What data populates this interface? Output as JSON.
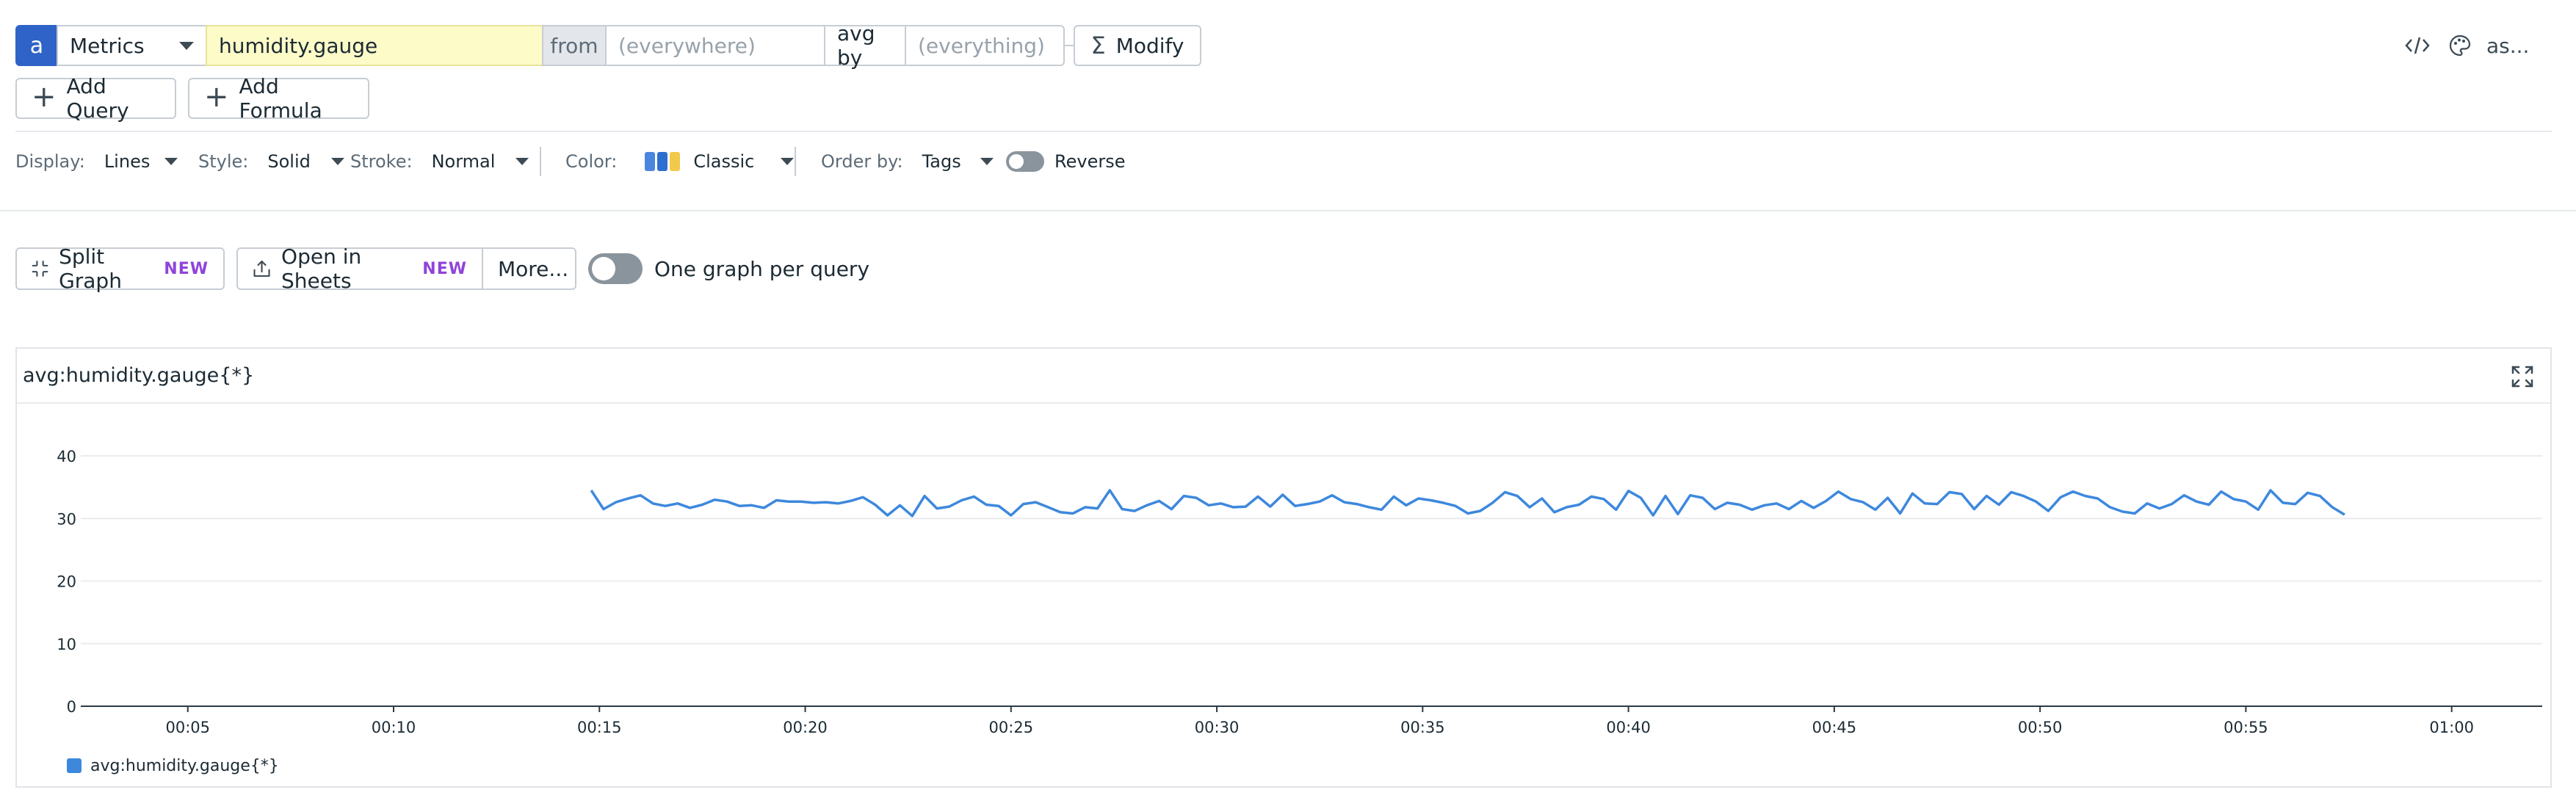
{
  "query": {
    "letter": "a",
    "source": "Metrics",
    "metric": "humidity.gauge",
    "from_label": "from",
    "from_placeholder": "(everywhere)",
    "aggregation": "avg by",
    "group_placeholder": "(everything)",
    "modify_label": "Modify",
    "modify_icon": "sigma-icon"
  },
  "top_actions": {
    "code_icon": "code-icon",
    "palette_icon": "palette-icon",
    "alias_label": "as..."
  },
  "query_buttons": {
    "add_query": "Add Query",
    "add_formula": "Add Formula"
  },
  "display_options": {
    "display_label": "Display:",
    "display_value": "Lines",
    "style_label": "Style:",
    "style_value": "Solid",
    "stroke_label": "Stroke:",
    "stroke_value": "Normal",
    "color_label": "Color:",
    "color_value": "Classic",
    "palette_colors": [
      "#4a86dd",
      "#2c6fd1",
      "#f2c94c"
    ],
    "order_label": "Order by:",
    "order_value": "Tags",
    "reverse_label": "Reverse"
  },
  "graph_actions": {
    "split_graph": "Split Graph",
    "split_new": "NEW",
    "open_sheets": "Open in Sheets",
    "sheets_new": "NEW",
    "more": "More...",
    "one_graph_label": "One graph per query"
  },
  "colors": {
    "accent": "#2f63c7",
    "line": "#3d88dd",
    "new_badge": "#8f44d9",
    "metric_bg": "#fdfbc8"
  },
  "chart_data": {
    "type": "line",
    "title": "avg:humidity.gauge{*}",
    "xlabel": "",
    "ylabel": "",
    "x_ticks": [
      "00:05",
      "00:10",
      "00:15",
      "00:20",
      "00:25",
      "00:30",
      "00:35",
      "00:40",
      "00:45",
      "00:50",
      "00:55",
      "01:00"
    ],
    "y_ticks": [
      0,
      10,
      20,
      30,
      40
    ],
    "xlim": [
      2.4,
      62.2
    ],
    "ylim": [
      0,
      40
    ],
    "grid": true,
    "legend_position": "bottom-left",
    "series": [
      {
        "name": "avg:humidity.gauge{*}",
        "color": "#3d88dd",
        "x_start_min": 14.8,
        "x_step_min": 0.3,
        "values": [
          34.5,
          31.5,
          32.6,
          33.2,
          33.7,
          32.4,
          32.0,
          32.4,
          31.7,
          32.2,
          33.0,
          32.7,
          32.0,
          32.1,
          31.7,
          32.9,
          32.7,
          32.7,
          32.5,
          32.6,
          32.4,
          32.8,
          33.4,
          32.2,
          30.5,
          32.1,
          30.4,
          33.6,
          31.6,
          31.9,
          32.9,
          33.5,
          32.2,
          32.0,
          30.5,
          32.3,
          32.6,
          31.8,
          31.0,
          30.8,
          31.8,
          31.6,
          34.5,
          31.5,
          31.2,
          32.1,
          32.8,
          31.5,
          33.6,
          33.3,
          32.1,
          32.4,
          31.8,
          31.9,
          33.5,
          31.9,
          33.8,
          32.0,
          32.3,
          32.7,
          33.7,
          32.6,
          32.3,
          31.8,
          31.4,
          33.5,
          32.1,
          33.2,
          32.9,
          32.5,
          32.0,
          30.8,
          31.2,
          32.5,
          34.2,
          33.6,
          31.8,
          33.2,
          31.0,
          31.8,
          32.2,
          33.5,
          33.1,
          31.4,
          34.4,
          33.3,
          30.5,
          33.6,
          30.7,
          33.7,
          33.3,
          31.5,
          32.5,
          32.2,
          31.4,
          32.1,
          32.4,
          31.5,
          32.8,
          31.7,
          32.8,
          34.3,
          33.1,
          32.6,
          31.4,
          33.3,
          30.8,
          34.0,
          32.4,
          32.3,
          34.2,
          33.9,
          31.5,
          33.6,
          32.2,
          34.2,
          33.6,
          32.7,
          31.2,
          33.4,
          34.3,
          33.6,
          33.2,
          31.8,
          31.1,
          30.8,
          32.4,
          31.6,
          32.3,
          33.7,
          32.7,
          32.2,
          34.3,
          33.1,
          32.7,
          31.4,
          34.5,
          32.5,
          32.3,
          34.1,
          33.6,
          31.8,
          30.6
        ]
      }
    ]
  }
}
